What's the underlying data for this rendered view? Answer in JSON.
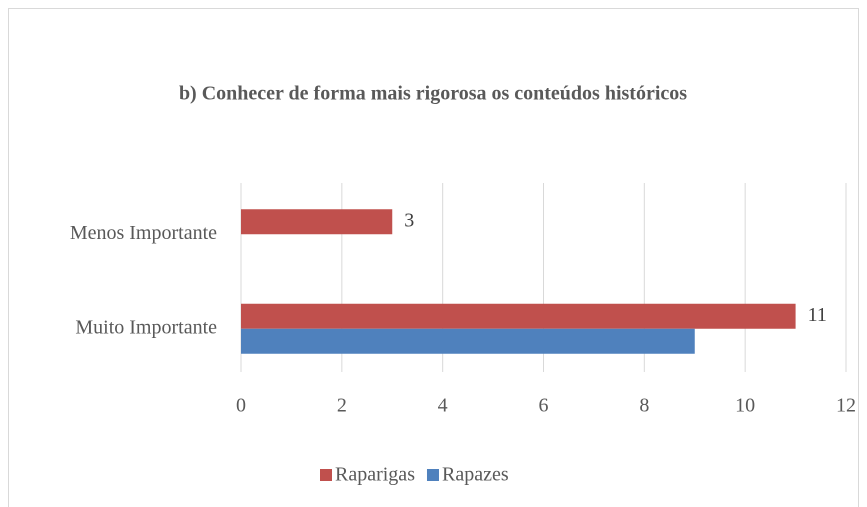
{
  "chart_data": {
    "type": "hbar",
    "title": "b) Conhecer de forma mais rigorosa os conteúdos históricos",
    "categories": [
      "Menos Importante",
      "Muito Importante"
    ],
    "series": [
      {
        "name": "Raparigas",
        "color": "#c0504d",
        "values": [
          3,
          11
        ],
        "data_labels": true
      },
      {
        "name": "Rapazes",
        "color": "#4f81bd",
        "values": [
          null,
          9
        ],
        "data_labels": false
      }
    ],
    "xlim": [
      0,
      12
    ],
    "xticks": [
      0,
      2,
      4,
      6,
      8,
      10,
      12
    ],
    "grid": true,
    "legend": "bottom"
  }
}
